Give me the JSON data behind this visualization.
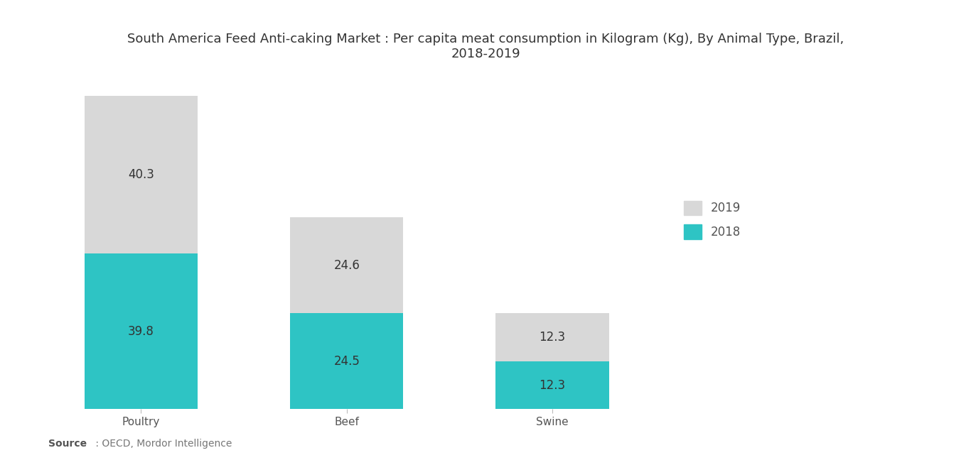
{
  "title_line1": "South America Feed Anti-caking Market : Per capita meat consumption in Kilogram (Kg), By Animal Type, Brazil,",
  "title_line2": "2018-2019",
  "categories": [
    "Poultry",
    "Beef",
    "Swine"
  ],
  "values_2018": [
    39.8,
    24.5,
    12.3
  ],
  "values_2019": [
    40.3,
    24.6,
    12.3
  ],
  "color_2018": "#2EC4C4",
  "color_2019": "#D8D8D8",
  "background_color": "#FFFFFF",
  "title_fontsize": 13,
  "label_fontsize": 12,
  "tick_fontsize": 11,
  "legend_fontsize": 12,
  "source_bold": "Source",
  "source_rest": " : OECD, Mordor Intelligence",
  "bar_width": 0.55,
  "ylim": [
    0,
    88
  ],
  "xlim_left": -0.45,
  "xlim_right": 3.8
}
